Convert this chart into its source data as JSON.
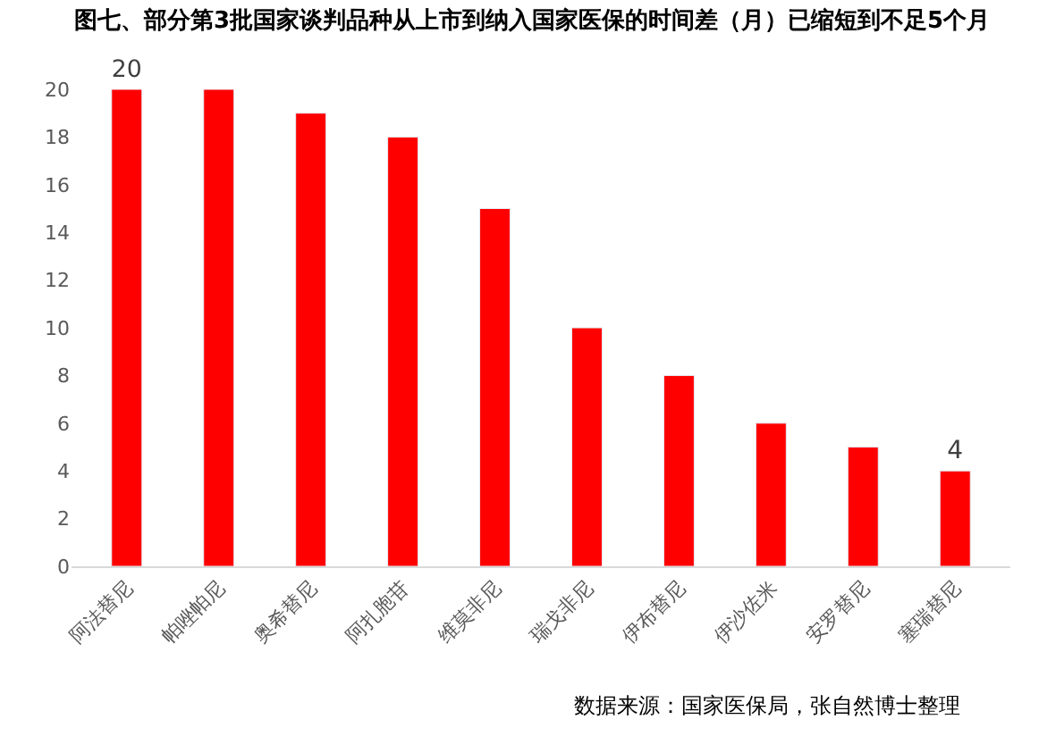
{
  "chart_data": {
    "type": "bar",
    "title": "图七、部分第3批国家谈判品种从上市到纳入国家医保的时间差（月）已缩短到不足5个月",
    "categories": [
      "阿法替尼",
      "帕唑帕尼",
      "奥希替尼",
      "阿扎胞苷",
      "维莫非尼",
      "瑞戈非尼",
      "伊布替尼",
      "伊沙佐米",
      "安罗替尼",
      "塞瑞替尼"
    ],
    "values": [
      20,
      20,
      19,
      18,
      15,
      10,
      8,
      6,
      5,
      4
    ],
    "value_labels": [
      "20",
      null,
      null,
      null,
      null,
      null,
      null,
      null,
      null,
      "4"
    ],
    "color": "#ff0000",
    "ylim": [
      0,
      20
    ],
    "yticks": [
      0,
      2,
      4,
      6,
      8,
      10,
      12,
      14,
      16,
      18,
      20
    ],
    "annotations": [
      "数据来源：国家医保局，张自然博士整理"
    ]
  }
}
